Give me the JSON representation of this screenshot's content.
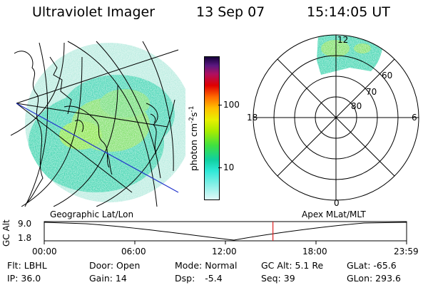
{
  "header": {
    "instrument": "Ultraviolet Imager",
    "date": "13 Sep 07",
    "time": "15:14:05 UT"
  },
  "colorbar": {
    "unit": "photon cm",
    "unit_exp1": "-2",
    "unit_mid": "s",
    "unit_exp2": "-1",
    "tick_100": "100",
    "tick_10": "10"
  },
  "polar": {
    "mlt_top": "12",
    "mlt_left": "18",
    "mlt_right": "6",
    "mlt_bottom": "0",
    "lat_60": "60",
    "lat_70": "70",
    "lat_80": "80"
  },
  "map_labels": {
    "left": "Geographic Lat/Lon",
    "right": "Apex MLat/MLT"
  },
  "timeline": {
    "y_label": "GC Alt",
    "y_max": "9.0",
    "y_min": "1.8",
    "x_ticks": [
      "00:00",
      "06:00",
      "12:00",
      "18:00",
      "23:59"
    ],
    "current_time_fraction": 0.6311
  },
  "status": {
    "flt": "Flt: LBHL",
    "ip": "IP: 36.0",
    "door": "Door: Open",
    "gain": "Gain: 14",
    "mode": "Mode: Normal",
    "dsp_label": "Dsp:",
    "dsp_value": "-5.4",
    "gc_alt": "GC Alt: 5.1 Re",
    "seq": "Seq: 39",
    "glat": "GLat: -65.6",
    "glon": "GLon: 293.6"
  },
  "colors": {
    "background": "#ffffff",
    "aurora_low": "#99e8d0",
    "aurora_mid": "#3ad8b4",
    "aurora_high": "#8ae64a",
    "orbit_track": "#2233cc",
    "current_time_marker": "#dd2222"
  }
}
